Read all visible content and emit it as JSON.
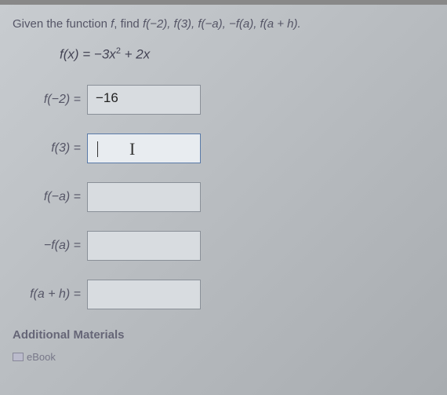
{
  "prompt": {
    "pre": "Given the function ",
    "fvar": "f",
    "mid": ", find ",
    "expressions": "f(−2), f(3), f(−a), −f(a), f(a + h)."
  },
  "function_def": {
    "lhs": "f(x) = ",
    "rhs_pre": "−3x",
    "sup": "2",
    "rhs_post": " + 2x"
  },
  "rows": [
    {
      "label": "f(−2) =",
      "value": "−16",
      "filled": true,
      "active": false
    },
    {
      "label": "f(3) =",
      "value": "",
      "filled": false,
      "active": true
    },
    {
      "label": "f(−a) =",
      "value": "",
      "filled": false,
      "active": false
    },
    {
      "label": "−f(a) =",
      "value": "",
      "filled": false,
      "active": false
    },
    {
      "label": "f(a + h) =",
      "value": "",
      "filled": false,
      "active": false
    }
  ],
  "additional_label": "Additional Materials",
  "ebook_label": "eBook",
  "colors": {
    "text": "#556",
    "border": "#8a9098",
    "active_border": "#5a7aa8",
    "input_bg": "#d8dce0"
  }
}
